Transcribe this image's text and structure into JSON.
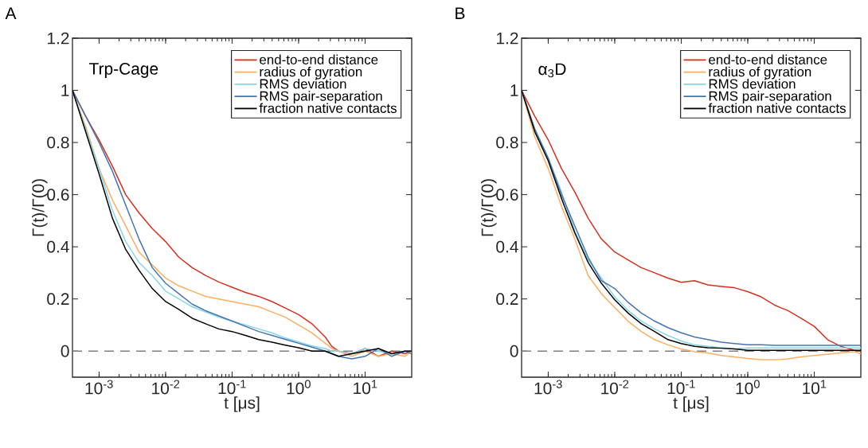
{
  "chart_data": [
    {
      "type": "line",
      "xlabel": "t [μs]",
      "ylabel": "Γ(t)/Γ(0)",
      "annotations": [
        "A",
        "Trp-Cage"
      ],
      "log": "x",
      "legend": "top right",
      "xlim": [
        0.000398,
        50.12
      ],
      "ylim": [
        -0.1,
        1.2
      ],
      "xticks": [
        {
          "value": 0.001,
          "label": "10$^{-3}$"
        },
        {
          "value": 0.01,
          "label": "10$^{-2}$"
        },
        {
          "value": 0.1,
          "label": "10$^{-1}$"
        },
        {
          "value": 1,
          "label": "10$^{0}$"
        },
        {
          "value": 10,
          "label": "10$^{1}$"
        }
      ],
      "yticks": [
        0,
        0.2,
        0.4,
        0.6,
        0.8,
        1,
        1.2
      ],
      "ref_lines": [
        {
          "axis": "y",
          "value": 0,
          "color": "#808080",
          "line_style": "dashed"
        }
      ],
      "x": [
        0.000398,
        0.000631,
        0.001,
        0.001585,
        0.002512,
        0.003981,
        0.00631,
        0.01,
        0.01585,
        0.02512,
        0.03981,
        0.0631,
        0.1,
        0.1585,
        0.2512,
        0.3981,
        0.631,
        1,
        1.585,
        2.512,
        3.162,
        3.981,
        6.31,
        10,
        15.85,
        25.12,
        39.81,
        50.12
      ],
      "series": [
        {
          "name": "end-to-end distance",
          "color": "#d7301f",
          "values": [
            1,
            0.9,
            0.81,
            0.71,
            0.6,
            0.53,
            0.47,
            0.42,
            0.36,
            0.32,
            0.29,
            0.265,
            0.245,
            0.225,
            0.21,
            0.19,
            0.165,
            0.14,
            0.105,
            0.054,
            0.018,
            0.0,
            -0.01,
            0.01,
            -0.02,
            0.0,
            -0.01,
            0.0
          ]
        },
        {
          "name": "radius of gyration",
          "color": "#fdae61",
          "values": [
            1,
            0.86,
            0.7,
            0.58,
            0.48,
            0.38,
            0.33,
            0.28,
            0.25,
            0.23,
            0.21,
            0.2,
            0.19,
            0.18,
            0.17,
            0.15,
            0.13,
            0.1,
            0.07,
            0.03,
            0.01,
            0.0,
            -0.02,
            0.0,
            -0.02,
            -0.01,
            -0.02,
            0.0
          ]
        },
        {
          "name": "RMS deviation",
          "color": "#86d6e8",
          "values": [
            1,
            0.85,
            0.7,
            0.54,
            0.42,
            0.34,
            0.29,
            0.23,
            0.2,
            0.17,
            0.15,
            0.13,
            0.115,
            0.1,
            0.085,
            0.07,
            0.05,
            0.035,
            0.02,
            0.01,
            0.0,
            0.0,
            -0.01,
            0.01,
            0.0,
            -0.01,
            0.0,
            0.0
          ]
        },
        {
          "name": "RMS pair-separation",
          "color": "#4575b4",
          "values": [
            1,
            0.9,
            0.8,
            0.69,
            0.56,
            0.43,
            0.32,
            0.26,
            0.22,
            0.18,
            0.155,
            0.135,
            0.115,
            0.095,
            0.075,
            0.06,
            0.045,
            0.03,
            0.015,
            0.0,
            -0.01,
            -0.02,
            -0.03,
            -0.02,
            0.01,
            -0.02,
            0.0,
            -0.01
          ]
        },
        {
          "name": "fraction native contacts",
          "color": "#000000",
          "values": [
            1,
            0.84,
            0.68,
            0.51,
            0.39,
            0.31,
            0.24,
            0.19,
            0.16,
            0.126,
            0.105,
            0.085,
            0.075,
            0.06,
            0.044,
            0.034,
            0.023,
            0.013,
            0.0,
            0.0,
            -0.01,
            -0.02,
            -0.01,
            0.0,
            0.01,
            -0.01,
            0.0,
            0.0
          ]
        }
      ]
    },
    {
      "type": "line",
      "xlabel": "t [μs]",
      "ylabel": "Γ(t)/Γ(0)",
      "annotations": [
        "B",
        "α$_{3}$D"
      ],
      "log": "x",
      "legend": "top right",
      "xlim": [
        0.000398,
        50.12
      ],
      "ylim": [
        -0.1,
        1.2
      ],
      "xticks": [
        {
          "value": 0.001,
          "label": "10$^{-3}$"
        },
        {
          "value": 0.01,
          "label": "10$^{-2}$"
        },
        {
          "value": 0.1,
          "label": "10$^{-1}$"
        },
        {
          "value": 1,
          "label": "10$^{0}$"
        },
        {
          "value": 10,
          "label": "10$^{1}$"
        }
      ],
      "yticks": [
        0,
        0.2,
        0.4,
        0.6,
        0.8,
        1,
        1.2
      ],
      "ref_lines": [
        {
          "axis": "y",
          "value": 0,
          "color": "#808080",
          "line_style": "dashed"
        }
      ],
      "x": [
        0.000398,
        0.000631,
        0.001,
        0.001585,
        0.002512,
        0.003981,
        0.00631,
        0.01,
        0.01585,
        0.02512,
        0.03981,
        0.0631,
        0.1,
        0.1585,
        0.2512,
        0.3981,
        0.631,
        1,
        1.585,
        2.512,
        3.162,
        3.981,
        6.31,
        10,
        15.85,
        25.12,
        39.81,
        50.12
      ],
      "series": [
        {
          "name": "end-to-end distance",
          "color": "#d7301f",
          "values": [
            1,
            0.9,
            0.81,
            0.7,
            0.61,
            0.51,
            0.43,
            0.38,
            0.35,
            0.32,
            0.3,
            0.28,
            0.264,
            0.27,
            0.254,
            0.248,
            0.243,
            0.228,
            0.208,
            0.177,
            0.166,
            0.156,
            0.126,
            0.095,
            0.044,
            0.018,
            0.003,
            0.0
          ]
        },
        {
          "name": "radius of gyration",
          "color": "#fdae61",
          "values": [
            1,
            0.82,
            0.7,
            0.555,
            0.43,
            0.29,
            0.22,
            0.167,
            0.115,
            0.075,
            0.044,
            0.024,
            0.008,
            -0.002,
            -0.007,
            -0.017,
            -0.022,
            -0.028,
            -0.033,
            -0.033,
            -0.032,
            -0.03,
            -0.022,
            -0.017,
            -0.012,
            -0.007,
            -0.002,
            -0.01
          ]
        },
        {
          "name": "RMS deviation",
          "color": "#86d6e8",
          "values": [
            1,
            0.85,
            0.74,
            0.61,
            0.46,
            0.35,
            0.28,
            0.208,
            0.156,
            0.115,
            0.085,
            0.06,
            0.039,
            0.024,
            0.018,
            0.013,
            0.008,
            0.012,
            0.012,
            0.012,
            0.012,
            0.012,
            0.012,
            0.012,
            0.012,
            0.012,
            0.012,
            0.012
          ]
        },
        {
          "name": "RMS pair-separation",
          "color": "#4575b4",
          "values": [
            1,
            0.85,
            0.74,
            0.6,
            0.48,
            0.36,
            0.27,
            0.24,
            0.187,
            0.146,
            0.115,
            0.09,
            0.07,
            0.054,
            0.044,
            0.034,
            0.029,
            0.024,
            0.024,
            0.022,
            0.022,
            0.022,
            0.022,
            0.022,
            0.022,
            0.022,
            0.022,
            0.022
          ]
        },
        {
          "name": "fraction native contacts",
          "color": "#000000",
          "values": [
            1,
            0.84,
            0.73,
            0.585,
            0.453,
            0.34,
            0.26,
            0.197,
            0.146,
            0.105,
            0.075,
            0.044,
            0.029,
            0.018,
            0.013,
            0.011,
            0.008,
            0.003,
            0.003,
            0.003,
            0.003,
            0.003,
            0.003,
            0.003,
            0.003,
            0.003,
            0.003,
            0.003
          ]
        }
      ]
    }
  ]
}
